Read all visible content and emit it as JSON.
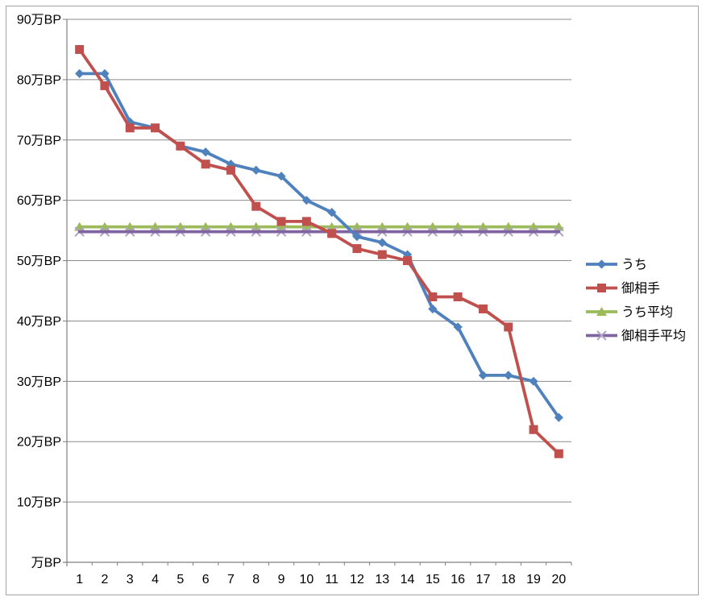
{
  "chart_data": {
    "type": "line",
    "title": "",
    "xlabel": "",
    "ylabel": "",
    "categories": [
      "1",
      "2",
      "3",
      "4",
      "5",
      "6",
      "7",
      "8",
      "9",
      "10",
      "11",
      "12",
      "13",
      "14",
      "15",
      "16",
      "17",
      "18",
      "19",
      "20"
    ],
    "y_axis": {
      "min": 0,
      "max": 90,
      "step": 10,
      "unit": "万BP",
      "tick_labels_top_to_bottom": [
        "90万BP",
        "80万BP",
        "70万BP",
        "60万BP",
        "50万BP",
        "40万BP",
        "30万BP",
        "20万BP",
        "10万BP",
        "万BP"
      ]
    },
    "grid": true,
    "legend_position": "right",
    "legend_entries": [
      "うち",
      "御相手",
      "うち平均",
      "御相手平均"
    ],
    "series": [
      {
        "id": "uchi",
        "name": "うち",
        "color": "#4F81BD",
        "marker": "diamond",
        "values": [
          81,
          81,
          73,
          72,
          69,
          68,
          66,
          65,
          64,
          60,
          58,
          54,
          53,
          51,
          42,
          39,
          31,
          31,
          30,
          24
        ]
      },
      {
        "id": "aite",
        "name": "御相手",
        "color": "#C0504D",
        "marker": "square",
        "values": [
          85,
          79,
          72,
          72,
          69,
          66,
          65,
          59,
          56.5,
          56.5,
          54.5,
          52,
          51,
          50,
          44,
          44,
          42,
          39,
          22,
          18
        ]
      },
      {
        "id": "uchi-avg",
        "name": "うち平均",
        "color": "#9BBB59",
        "marker": "triangle",
        "values": [
          55.6,
          55.6,
          55.6,
          55.6,
          55.6,
          55.6,
          55.6,
          55.6,
          55.6,
          55.6,
          55.6,
          55.6,
          55.6,
          55.6,
          55.6,
          55.6,
          55.6,
          55.6,
          55.6,
          55.6
        ]
      },
      {
        "id": "aite-avg",
        "name": "御相手平均",
        "color": "#8064A2",
        "marker": "x",
        "marker_color": "#B3A2C7",
        "values": [
          54.8,
          54.8,
          54.8,
          54.8,
          54.8,
          54.8,
          54.8,
          54.8,
          54.8,
          54.8,
          54.8,
          54.8,
          54.8,
          54.8,
          54.8,
          54.8,
          54.8,
          54.8,
          54.8,
          54.8
        ]
      }
    ],
    "colors": {
      "axis": "#7F7F7F",
      "gridline": "#8C8C8C",
      "frame_border": "#A3A3A3",
      "text": "#000000",
      "background": "#FFFFFF"
    }
  }
}
